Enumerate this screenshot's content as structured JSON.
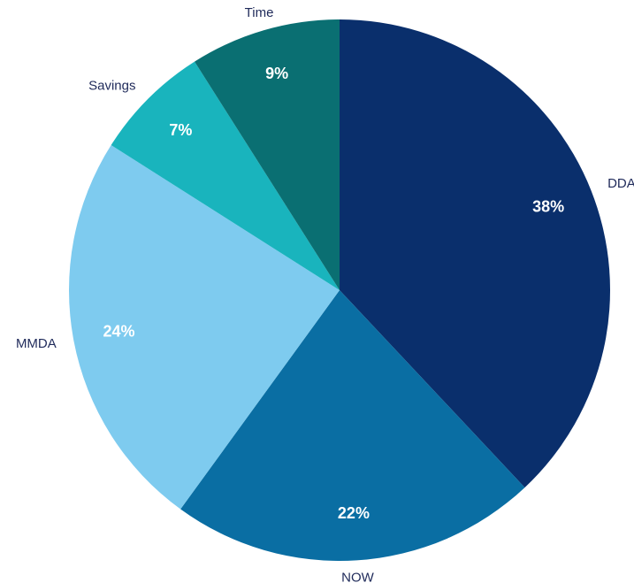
{
  "chart_data": {
    "type": "pie",
    "categories": [
      "DDA",
      "NOW",
      "MMDA",
      "Savings",
      "Time"
    ],
    "values": [
      38,
      22,
      24,
      7,
      9
    ],
    "value_labels": [
      "38%",
      "22%",
      "24%",
      "7%",
      "9%"
    ],
    "colors": [
      "#0a2f6c",
      "#0a6ea3",
      "#7ecbef",
      "#19b4bd",
      "#0a6f72"
    ]
  }
}
